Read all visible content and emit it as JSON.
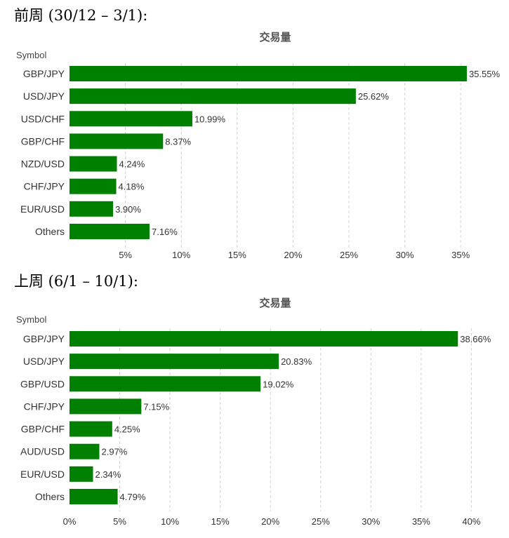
{
  "chart_data": [
    {
      "heading": "前周 (30/12 – 3/1):",
      "type": "bar",
      "orientation": "horizontal",
      "title": "交易量",
      "category_axis_label": "Symbol",
      "categories": [
        "GBP/JPY",
        "USD/JPY",
        "USD/CHF",
        "GBP/CHF",
        "NZD/USD",
        "CHF/JPY",
        "EUR/USD",
        "Others"
      ],
      "values": [
        35.55,
        25.62,
        10.99,
        8.37,
        4.24,
        4.18,
        3.9,
        7.16
      ],
      "value_labels": [
        "35.55%",
        "25.62%",
        "10.99%",
        "8.37%",
        "4.24%",
        "4.18%",
        "3.90%",
        "7.16%"
      ],
      "xlim": [
        0,
        35.55
      ],
      "ticks": [
        5,
        10,
        15,
        20,
        25,
        30,
        35
      ],
      "tick_labels": [
        "5%",
        "10%",
        "15%",
        "20%",
        "25%",
        "30%",
        "35%"
      ],
      "bar_color": "#008000",
      "grid": true
    },
    {
      "heading": "上周 (6/1 – 10/1):",
      "type": "bar",
      "orientation": "horizontal",
      "title": "交易量",
      "category_axis_label": "Symbol",
      "categories": [
        "GBP/JPY",
        "USD/JPY",
        "GBP/USD",
        "CHF/JPY",
        "GBP/CHF",
        "AUD/USD",
        "EUR/USD",
        "Others"
      ],
      "values": [
        38.66,
        20.83,
        19.02,
        7.15,
        4.25,
        2.97,
        2.34,
        4.79
      ],
      "value_labels": [
        "38.66%",
        "20.83%",
        "19.02%",
        "7.15%",
        "4.25%",
        "2.97%",
        "2.34%",
        "4.79%"
      ],
      "xlim": [
        0,
        40
      ],
      "ticks": [
        0,
        5,
        10,
        15,
        20,
        25,
        30,
        35,
        40
      ],
      "tick_labels": [
        "0%",
        "5%",
        "10%",
        "15%",
        "20%",
        "25%",
        "30%",
        "35%",
        "40%"
      ],
      "bar_color": "#008000",
      "grid": true
    }
  ]
}
